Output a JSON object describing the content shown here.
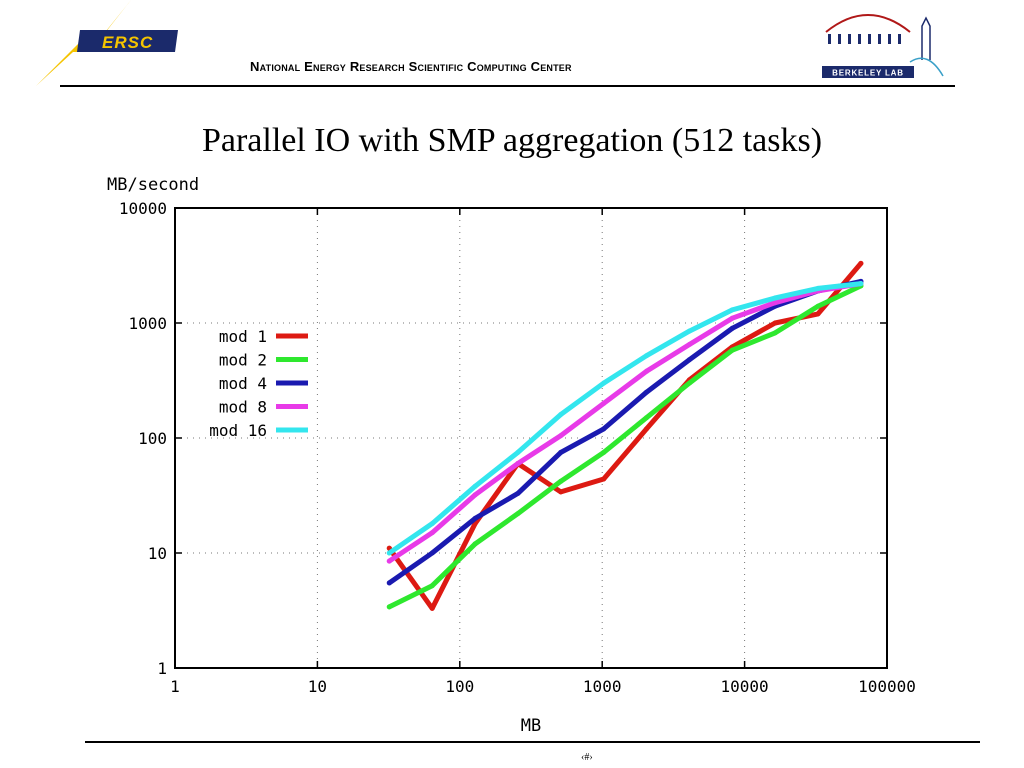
{
  "header": {
    "org_name": "National Energy Research Scientific Computing Center",
    "nersc_logo_text": "ERSC",
    "berkeley_logo_text": "BERKELEY LAB"
  },
  "slide": {
    "title": "Parallel IO with SMP aggregation (512 tasks)",
    "page_number": "‹#›"
  },
  "colors": {
    "mod1": "#dd1a12",
    "mod2": "#2ee82e",
    "mod4": "#1a1ab0",
    "mod8": "#e83ae8",
    "mod16": "#33e6ee",
    "nersc_yellow": "#f5c400",
    "nersc_navy": "#1b2a6b"
  },
  "chart_data": {
    "type": "line",
    "xlabel": "MB",
    "ylabel": "MB/second",
    "xscale": "log",
    "yscale": "log",
    "xlim": [
      1,
      100000
    ],
    "ylim": [
      1,
      10000
    ],
    "x_ticks": [
      "1",
      "10",
      "100",
      "1000",
      "10000",
      "100000"
    ],
    "y_ticks": [
      "1",
      "10",
      "100",
      "1000",
      "10000"
    ],
    "grid": true,
    "legend_position": "left-middle",
    "series": [
      {
        "name": "mod 1",
        "color": "#dd1a12",
        "x": [
          32,
          64,
          128,
          256,
          512,
          1024,
          2048,
          4096,
          8192,
          16384,
          32768,
          65536
        ],
        "y": [
          11,
          3.3,
          18,
          60,
          34,
          44,
          120,
          320,
          620,
          1000,
          1200,
          3300
        ]
      },
      {
        "name": "mod 2",
        "color": "#2ee82e",
        "x": [
          32,
          64,
          128,
          256,
          512,
          1024,
          2048,
          4096,
          8192,
          16384,
          32768,
          65536
        ],
        "y": [
          3.4,
          5.2,
          12,
          22,
          42,
          75,
          150,
          300,
          580,
          820,
          1400,
          2100
        ]
      },
      {
        "name": "mod 4",
        "color": "#1a1ab0",
        "x": [
          32,
          64,
          128,
          256,
          512,
          1024,
          2048,
          4096,
          8192,
          16384,
          32768,
          65536
        ],
        "y": [
          5.5,
          10,
          20,
          33,
          75,
          120,
          250,
          480,
          900,
          1400,
          1900,
          2300
        ]
      },
      {
        "name": "mod 8",
        "color": "#e83ae8",
        "x": [
          32,
          64,
          128,
          256,
          512,
          1024,
          2048,
          4096,
          8192,
          16384,
          32768,
          65536
        ],
        "y": [
          8.5,
          15,
          32,
          60,
          105,
          200,
          380,
          650,
          1100,
          1500,
          1900,
          2200
        ]
      },
      {
        "name": "mod 16",
        "color": "#33e6ee",
        "x": [
          32,
          64,
          128,
          256,
          512,
          1024,
          2048,
          4096,
          8192,
          16384,
          32768,
          65536
        ],
        "y": [
          10,
          18,
          38,
          75,
          160,
          300,
          520,
          850,
          1300,
          1650,
          2000,
          2200
        ]
      }
    ]
  }
}
